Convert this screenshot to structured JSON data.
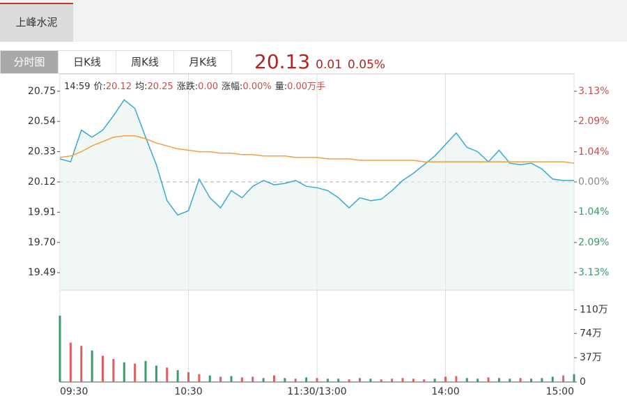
{
  "stock_tab": "上峰水泥",
  "tabs": [
    "分时图",
    "日K线",
    "周K线",
    "月K线"
  ],
  "quote": {
    "price": "20.13",
    "change": "0.01",
    "change_pct": "0.05%"
  },
  "info": {
    "time": "14:59",
    "items": [
      {
        "label": "价:",
        "value": "20.12"
      },
      {
        "label": "均:",
        "value": "20.25"
      },
      {
        "label": "涨跌:",
        "value": "0.00"
      },
      {
        "label": "涨幅:",
        "value": "0.00%"
      },
      {
        "label": "量:",
        "value": "0.00万手"
      }
    ]
  },
  "chart_data": [
    {
      "type": "line",
      "x": [
        0,
        5,
        10,
        15,
        20,
        25,
        30,
        35,
        40,
        45,
        50,
        55,
        60,
        65,
        70,
        75,
        80,
        85,
        90,
        95,
        100,
        105,
        110,
        115,
        120,
        125,
        130,
        135,
        140,
        145,
        150,
        155,
        160,
        165,
        170,
        175,
        180,
        185,
        190,
        195,
        200,
        205,
        210,
        215,
        220,
        225,
        230,
        235,
        240
      ],
      "xlim": [
        0,
        240
      ],
      "xticks": [
        {
          "value": 0,
          "label": "09:30"
        },
        {
          "value": 60,
          "label": "10:30"
        },
        {
          "value": 120,
          "label": "11:30/13:00"
        },
        {
          "value": 180,
          "label": "14:00"
        },
        {
          "value": 240,
          "label": "15:00"
        }
      ],
      "ylim": [
        19.37,
        20.87
      ],
      "yticks": [
        19.49,
        {
          "value": 19.7,
          "label": "19.70"
        },
        19.91,
        20.12,
        20.33,
        20.54,
        20.75
      ],
      "y2lim": [
        -3.73,
        3.73
      ],
      "y2ticks": [
        {
          "value": -3.13,
          "label": "3.13%"
        },
        {
          "value": -2.09,
          "label": "2.09%"
        },
        {
          "value": -1.04,
          "label": "1.04%"
        },
        {
          "value": 0,
          "label": "0.00%"
        },
        {
          "value": 1.04,
          "label": "1.04%"
        },
        {
          "value": 2.09,
          "label": "2.09%"
        },
        {
          "value": 3.13,
          "label": "3.13%"
        }
      ],
      "up_color": "#c0504d",
      "down_color": "#3a9a6a",
      "flat_color": "#888888",
      "series": [
        {
          "name": "价",
          "color": "#3aa8d0",
          "values": [
            20.28,
            20.26,
            20.48,
            20.43,
            20.48,
            20.58,
            20.69,
            20.63,
            20.43,
            20.24,
            19.99,
            19.89,
            19.92,
            20.14,
            20.01,
            19.94,
            20.06,
            20.01,
            20.09,
            20.13,
            20.1,
            20.11,
            20.13,
            20.09,
            20.08,
            20.06,
            20.01,
            19.94,
            20.01,
            19.99,
            20.0,
            20.06,
            20.13,
            20.18,
            20.24,
            20.3,
            20.38,
            20.46,
            20.36,
            20.33,
            20.26,
            20.34,
            20.25,
            20.24,
            20.25,
            20.21,
            20.14,
            20.13,
            20.13
          ]
        },
        {
          "name": "均",
          "color": "#f0a040",
          "values": [
            20.29,
            20.3,
            20.33,
            20.37,
            20.4,
            20.43,
            20.44,
            20.44,
            20.42,
            20.39,
            20.37,
            20.35,
            20.34,
            20.33,
            20.33,
            20.32,
            20.32,
            20.31,
            20.31,
            20.3,
            20.3,
            20.3,
            20.29,
            20.29,
            20.29,
            20.28,
            20.28,
            20.28,
            20.27,
            20.27,
            20.27,
            20.27,
            20.27,
            20.27,
            20.26,
            20.26,
            20.26,
            20.26,
            20.26,
            20.26,
            20.26,
            20.26,
            20.26,
            20.26,
            20.26,
            20.26,
            20.26,
            20.26,
            20.25
          ]
        }
      ]
    },
    {
      "type": "bar",
      "x": [
        0,
        5,
        10,
        15,
        20,
        25,
        30,
        35,
        40,
        45,
        50,
        55,
        60,
        65,
        70,
        75,
        80,
        85,
        90,
        95,
        100,
        105,
        110,
        115,
        120,
        125,
        130,
        135,
        140,
        145,
        150,
        155,
        160,
        165,
        170,
        175,
        180,
        185,
        190,
        195,
        200,
        205,
        210,
        215,
        220,
        225,
        230,
        235,
        240
      ],
      "ylim": [
        0,
        138
      ],
      "yticks": [
        0,
        {
          "value": 37,
          "label": "37万"
        },
        {
          "value": 74,
          "label": "74万"
        },
        {
          "value": 110,
          "label": "110万"
        }
      ],
      "values": [
        101,
        60,
        55,
        48,
        40,
        35,
        30,
        28,
        32,
        25,
        22,
        18,
        15,
        12,
        10,
        8,
        9,
        7,
        8,
        6,
        10,
        6,
        5,
        7,
        6,
        5,
        5,
        4,
        6,
        5,
        4,
        5,
        6,
        5,
        4,
        5,
        8,
        9,
        6,
        5,
        7,
        6,
        5,
        6,
        5,
        6,
        8,
        10,
        12
      ],
      "colors": [
        "#3a9a6a",
        "#e06060",
        "#e06060",
        "#3a9a6a",
        "#e06060",
        "#e06060",
        "#3a9a6a",
        "#e06060",
        "#3a9a6a",
        "#3a9a6a",
        "#e06060",
        "#3a9a6a",
        "#e06060",
        "#e06060",
        "#3a9a6a",
        "#e06060",
        "#3a9a6a",
        "#e06060",
        "#e06060",
        "#3a9a6a",
        "#e06060",
        "#3a9a6a",
        "#e06060",
        "#3a9a6a",
        "#e06060",
        "#3a9a6a",
        "#3a9a6a",
        "#e06060",
        "#e06060",
        "#3a9a6a",
        "#e06060",
        "#e06060",
        "#e06060",
        "#e06060",
        "#e06060",
        "#3a9a6a",
        "#e06060",
        "#e06060",
        "#3a9a6a",
        "#3a9a6a",
        "#e06060",
        "#3a9a6a",
        "#3a9a6a",
        "#e06060",
        "#3a9a6a",
        "#3a9a6a",
        "#3a9a6a",
        "#e06060",
        "#3a9a6a"
      ]
    }
  ]
}
